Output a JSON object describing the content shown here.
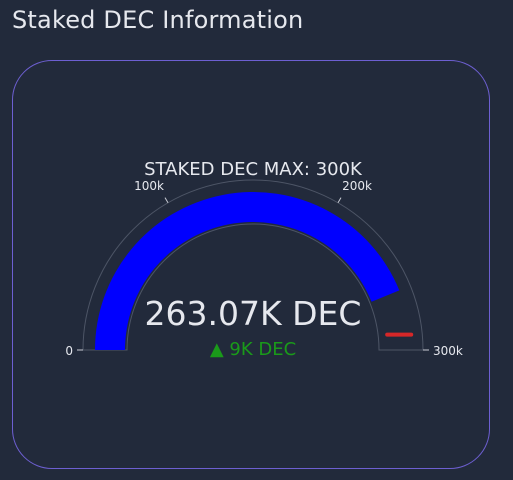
{
  "page": {
    "title": "Staked DEC Information"
  },
  "gauge": {
    "title": "STAKED DEC MAX: 300K",
    "value": 263.07,
    "max": 300,
    "value_label": "263.07K DEC",
    "delta_label": "▲ 9K DEC",
    "threshold": 290,
    "ticks": [
      {
        "value": 0,
        "label": "0"
      },
      {
        "value": 100,
        "label": "100k"
      },
      {
        "value": 200,
        "label": "200k"
      },
      {
        "value": 300,
        "label": "300k"
      }
    ],
    "colors": {
      "bar": "#0000ff",
      "threshold": "#d62728",
      "delta": "#1a9a1a",
      "frame": "#6d5fd1",
      "background": "#222a3b"
    }
  }
}
